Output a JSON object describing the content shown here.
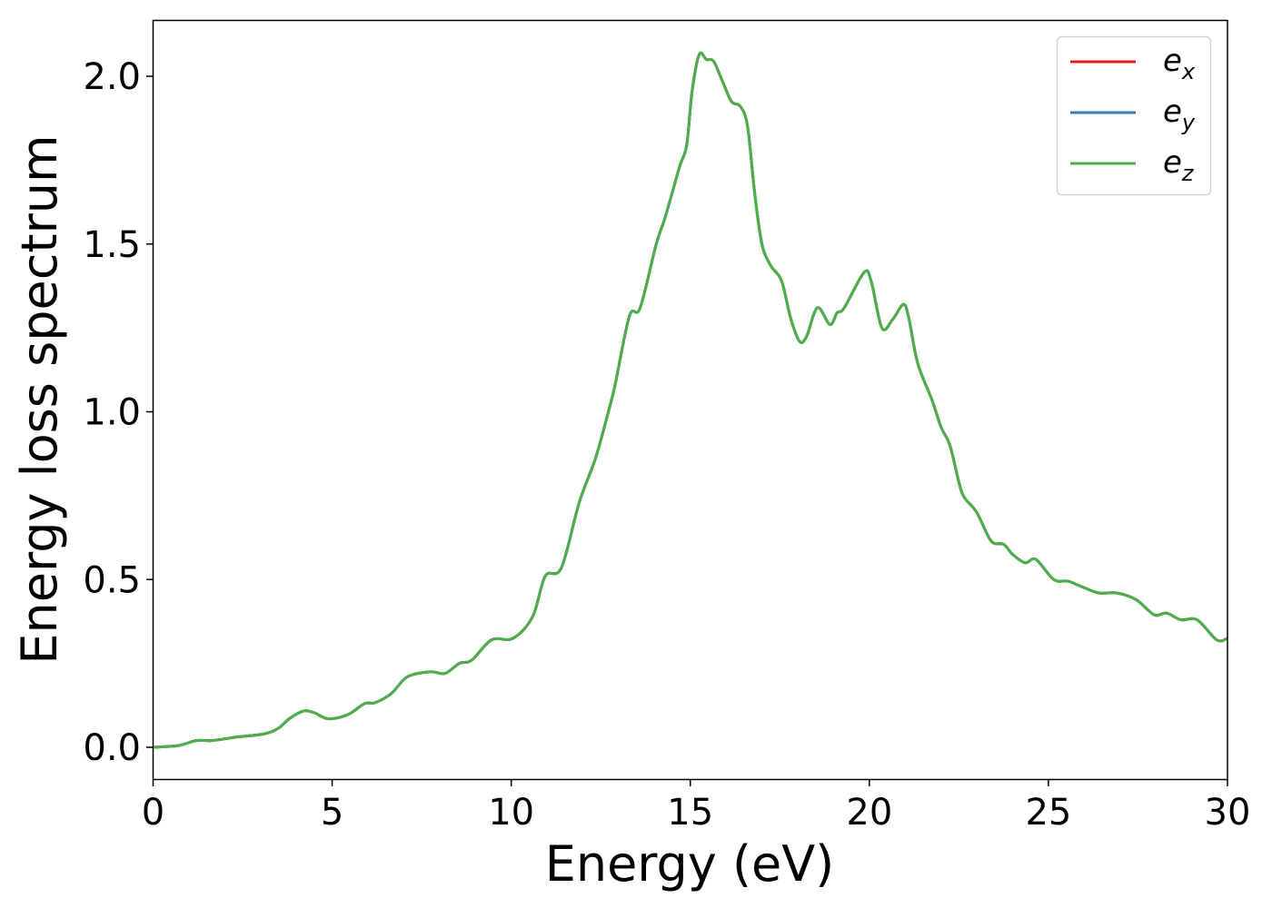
{
  "chart_data": {
    "type": "line",
    "title": "",
    "xlabel": "Energy (eV)",
    "ylabel": "Energy loss spectrum",
    "xlim": [
      0,
      30
    ],
    "ylim": [
      -0.1,
      2.17
    ],
    "xticks": [
      0,
      5,
      10,
      15,
      20,
      25,
      30
    ],
    "xtick_labels": [
      "0",
      "5",
      "10",
      "15",
      "20",
      "25",
      "30"
    ],
    "yticks": [
      0.0,
      0.5,
      1.0,
      1.5,
      2.0
    ],
    "ytick_labels": [
      "0.0",
      "0.5",
      "1.0",
      "1.5",
      "2.0"
    ],
    "grid": false,
    "legend_position": "top-right",
    "x": [
      0,
      0.7,
      1.2,
      1.65,
      2.3,
      3.1,
      3.5,
      3.8,
      4.2,
      4.5,
      4.9,
      5.45,
      5.9,
      6.2,
      6.65,
      7.1,
      7.75,
      8.15,
      8.55,
      8.9,
      9.45,
      10.05,
      10.6,
      10.95,
      11.4,
      11.9,
      12.35,
      12.7,
      12.9,
      13.3,
      13.6,
      14.05,
      14.3,
      14.7,
      14.9,
      15.05,
      15.25,
      15.45,
      15.65,
      15.9,
      16.15,
      16.4,
      16.6,
      16.8,
      17.0,
      17.25,
      17.55,
      17.8,
      18.05,
      18.25,
      18.55,
      18.9,
      19.1,
      19.3,
      19.85,
      20.05,
      20.35,
      20.65,
      20.95,
      21.1,
      21.35,
      21.75,
      22.0,
      22.25,
      22.5,
      22.65,
      23.0,
      23.4,
      23.75,
      24.0,
      24.35,
      24.65,
      25.15,
      25.55,
      25.9,
      26.4,
      26.9,
      27.45,
      27.95,
      28.3,
      28.7,
      29.15,
      29.7,
      30
    ],
    "series": [
      {
        "name": "e",
        "subscript": "x",
        "color": "#e41a1c",
        "values": [
          0,
          0.005,
          0.02,
          0.02,
          0.03,
          0.04,
          0.057,
          0.085,
          0.108,
          0.103,
          0.085,
          0.098,
          0.13,
          0.133,
          0.16,
          0.21,
          0.225,
          0.22,
          0.25,
          0.26,
          0.32,
          0.325,
          0.39,
          0.51,
          0.535,
          0.73,
          0.86,
          0.995,
          1.08,
          1.285,
          1.31,
          1.5,
          1.58,
          1.73,
          1.795,
          1.955,
          2.065,
          2.05,
          2.045,
          1.985,
          1.925,
          1.91,
          1.85,
          1.65,
          1.5,
          1.435,
          1.39,
          1.28,
          1.21,
          1.225,
          1.31,
          1.26,
          1.295,
          1.31,
          1.415,
          1.39,
          1.25,
          1.275,
          1.32,
          1.28,
          1.145,
          1.035,
          0.955,
          0.9,
          0.79,
          0.745,
          0.7,
          0.615,
          0.605,
          0.575,
          0.55,
          0.56,
          0.5,
          0.495,
          0.48,
          0.46,
          0.46,
          0.44,
          0.395,
          0.4,
          0.38,
          0.38,
          0.32,
          0.325
        ]
      },
      {
        "name": "e",
        "subscript": "y",
        "color": "#377eb8",
        "values": [
          0,
          0.005,
          0.02,
          0.02,
          0.03,
          0.04,
          0.057,
          0.085,
          0.108,
          0.103,
          0.085,
          0.098,
          0.13,
          0.133,
          0.16,
          0.21,
          0.225,
          0.22,
          0.25,
          0.26,
          0.32,
          0.325,
          0.39,
          0.51,
          0.535,
          0.73,
          0.86,
          0.995,
          1.08,
          1.285,
          1.31,
          1.5,
          1.58,
          1.73,
          1.795,
          1.955,
          2.065,
          2.05,
          2.045,
          1.985,
          1.925,
          1.91,
          1.85,
          1.65,
          1.5,
          1.435,
          1.39,
          1.28,
          1.21,
          1.225,
          1.31,
          1.26,
          1.295,
          1.31,
          1.415,
          1.39,
          1.25,
          1.275,
          1.32,
          1.28,
          1.145,
          1.035,
          0.955,
          0.9,
          0.79,
          0.745,
          0.7,
          0.615,
          0.605,
          0.575,
          0.55,
          0.56,
          0.5,
          0.495,
          0.48,
          0.46,
          0.46,
          0.44,
          0.395,
          0.4,
          0.38,
          0.38,
          0.32,
          0.325
        ]
      },
      {
        "name": "e",
        "subscript": "z",
        "color": "#4daf4a",
        "values": [
          0,
          0.005,
          0.02,
          0.02,
          0.03,
          0.04,
          0.057,
          0.085,
          0.108,
          0.103,
          0.085,
          0.098,
          0.13,
          0.133,
          0.16,
          0.21,
          0.225,
          0.22,
          0.25,
          0.26,
          0.32,
          0.325,
          0.39,
          0.51,
          0.535,
          0.73,
          0.86,
          0.995,
          1.08,
          1.285,
          1.31,
          1.5,
          1.58,
          1.73,
          1.795,
          1.955,
          2.065,
          2.05,
          2.045,
          1.985,
          1.925,
          1.91,
          1.85,
          1.65,
          1.5,
          1.435,
          1.39,
          1.28,
          1.21,
          1.225,
          1.31,
          1.26,
          1.295,
          1.31,
          1.415,
          1.39,
          1.25,
          1.275,
          1.32,
          1.28,
          1.145,
          1.035,
          0.955,
          0.9,
          0.79,
          0.745,
          0.7,
          0.615,
          0.605,
          0.575,
          0.55,
          0.56,
          0.5,
          0.495,
          0.48,
          0.46,
          0.46,
          0.44,
          0.395,
          0.4,
          0.38,
          0.38,
          0.32,
          0.325
        ]
      }
    ]
  }
}
